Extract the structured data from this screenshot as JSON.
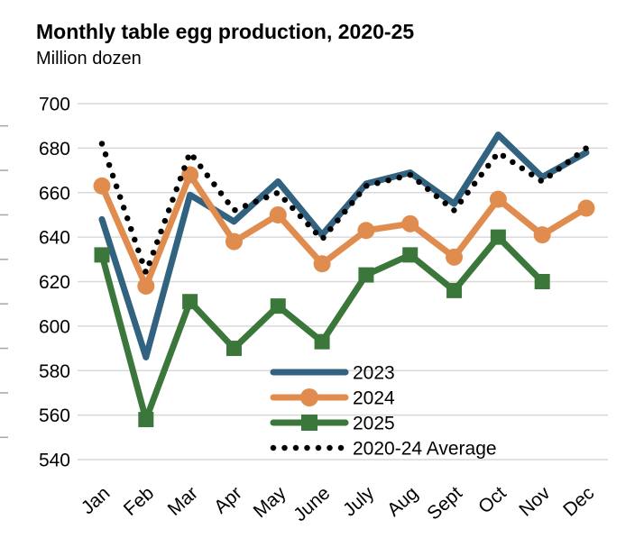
{
  "chart_data": {
    "type": "line",
    "title": "Monthly table egg production, 2020-25",
    "subtitle": "Million dozen",
    "categories": [
      "Jan",
      "Feb",
      "Mar",
      "Apr",
      "May",
      "June",
      "July",
      "Aug",
      "Sept",
      "Oct",
      "Nov",
      "Dec"
    ],
    "ylim": [
      540,
      700
    ],
    "ytick_step": 20,
    "yticks": [
      540,
      560,
      580,
      600,
      620,
      640,
      660,
      680,
      700
    ],
    "grid": true,
    "legend_position": "inside-bottom-center",
    "colors": {
      "grid": "#d9d9d9",
      "minor_tick": "#a6a6a6",
      "s2023": "#31627F",
      "s2024": "#E18C4F",
      "s2025": "#3B773B",
      "average": "#000000"
    },
    "series": [
      {
        "name": "2023",
        "color": "#31627F",
        "marker": "none",
        "style": "solid",
        "values": [
          648,
          586,
          659,
          647,
          665,
          641,
          664,
          669,
          655,
          686,
          667,
          678
        ]
      },
      {
        "name": "2024",
        "color": "#E18C4F",
        "marker": "circle",
        "style": "solid",
        "values": [
          663,
          618,
          668,
          638,
          650,
          628,
          643,
          646,
          631,
          657,
          641,
          653
        ]
      },
      {
        "name": "2025",
        "color": "#3B773B",
        "marker": "square",
        "style": "solid",
        "values": [
          632,
          558,
          611,
          590,
          609,
          593,
          623,
          632,
          616,
          640,
          620,
          null
        ]
      },
      {
        "name": "2020-24 Average",
        "color": "#000000",
        "marker": "none",
        "style": "dotted",
        "values": [
          682,
          624,
          678,
          652,
          660,
          639,
          663,
          668,
          652,
          678,
          665,
          680
        ]
      }
    ]
  }
}
